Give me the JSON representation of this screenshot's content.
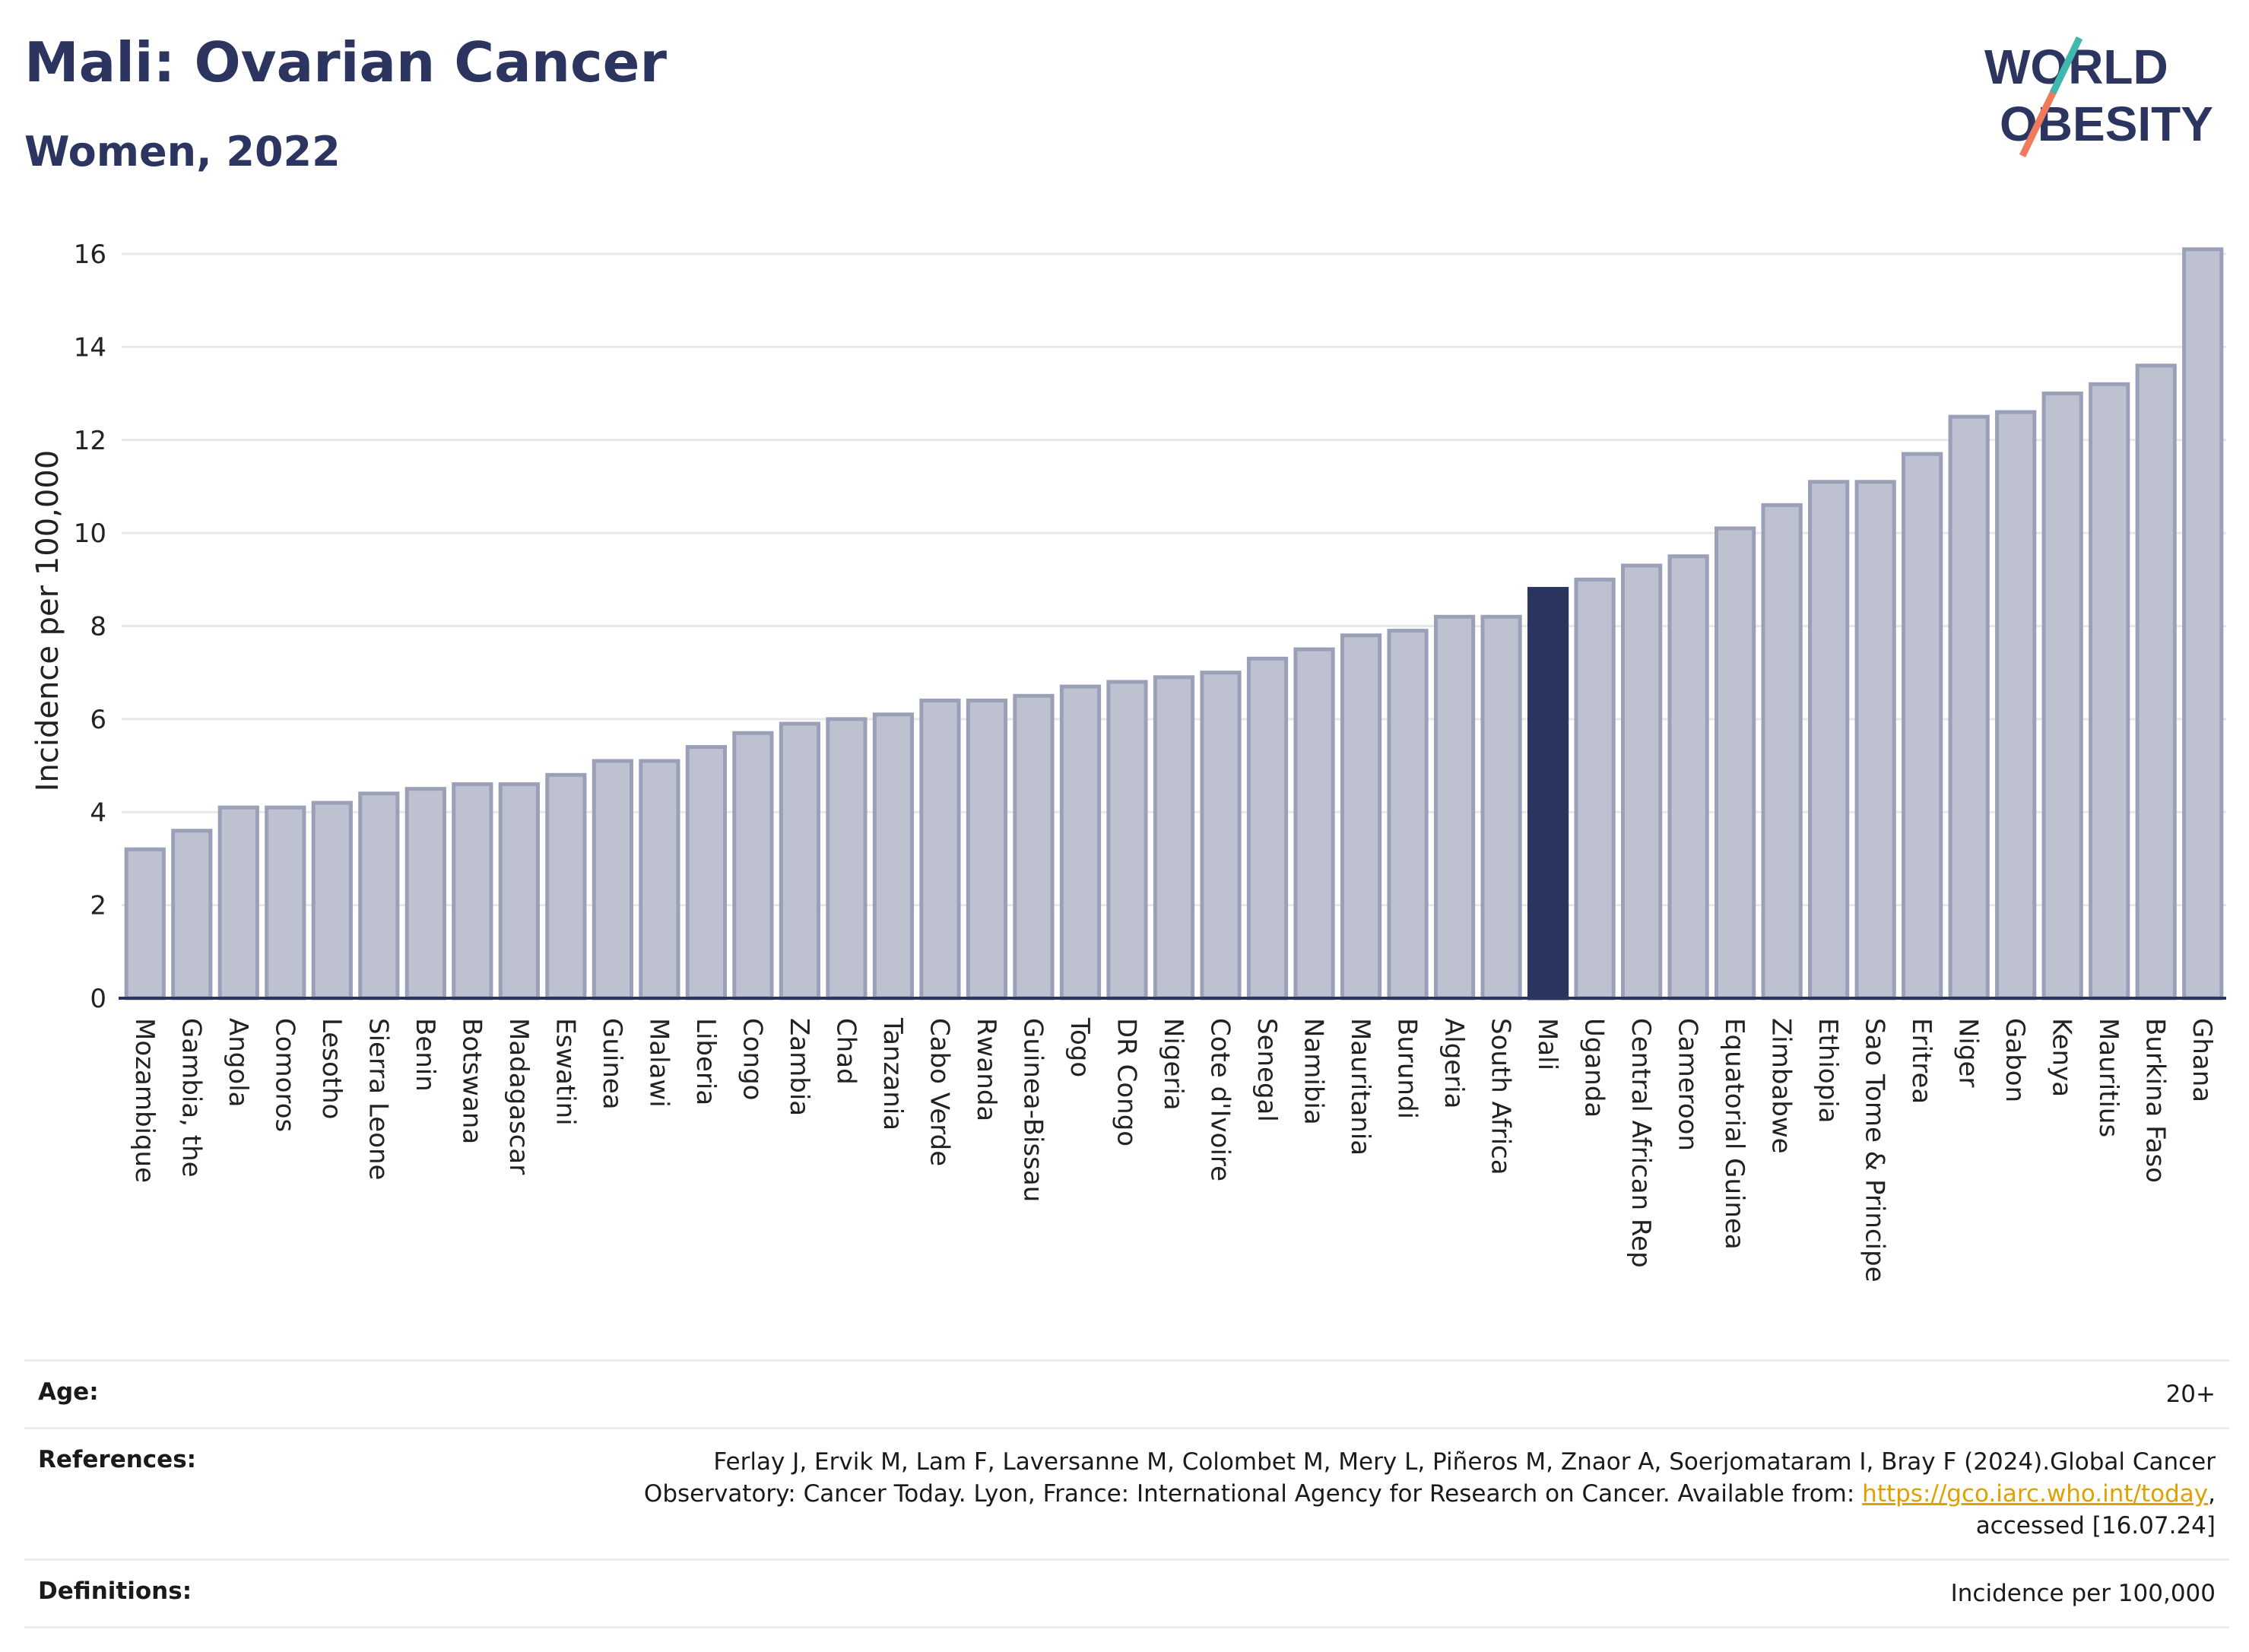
{
  "header": {
    "title": "Mali: Ovarian Cancer",
    "subtitle": "Women, 2022"
  },
  "logo": {
    "line1": "WORLD",
    "line2": "OBESITY"
  },
  "chart_data": {
    "type": "bar",
    "ylabel": "Incidence per 100,000",
    "ylim": [
      0,
      16
    ],
    "yticks": [
      "0",
      "2",
      "4",
      "6",
      "8",
      "10",
      "12",
      "14",
      "16"
    ],
    "grid": true,
    "highlight": "Mali",
    "colors": {
      "bar": "#bec2d0",
      "bar_edge": "#9aa0b8",
      "highlight": "#2b3560"
    },
    "categories": [
      "Mozambique",
      "Gambia, the",
      "Angola",
      "Comoros",
      "Lesotho",
      "Sierra Leone",
      "Benin",
      "Botswana",
      "Madagascar",
      "Eswatini",
      "Guinea",
      "Malawi",
      "Liberia",
      "Congo",
      "Zambia",
      "Chad",
      "Tanzania",
      "Cabo Verde",
      "Rwanda",
      "Guinea-Bissau",
      "Togo",
      "DR Congo",
      "Nigeria",
      "Cote d'Ivoire",
      "Senegal",
      "Namibia",
      "Mauritania",
      "Burundi",
      "Algeria",
      "South Africa",
      "Mali",
      "Uganda",
      "Central African Rep",
      "Cameroon",
      "Equatorial Guinea",
      "Zimbabwe",
      "Ethiopia",
      "Sao Tome & Principe",
      "Eritrea",
      "Niger",
      "Gabon",
      "Kenya",
      "Mauritius",
      "Burkina Faso",
      "Ghana"
    ],
    "values": [
      3.2,
      3.6,
      4.1,
      4.1,
      4.2,
      4.4,
      4.5,
      4.6,
      4.6,
      4.8,
      5.1,
      5.1,
      5.4,
      5.7,
      5.9,
      6.0,
      6.1,
      6.4,
      6.4,
      6.5,
      6.7,
      6.8,
      6.9,
      7.0,
      7.3,
      7.5,
      7.8,
      7.9,
      8.2,
      8.2,
      8.8,
      9.0,
      9.3,
      9.5,
      10.1,
      10.6,
      11.1,
      11.1,
      11.7,
      12.5,
      12.6,
      13.0,
      13.2,
      13.6,
      16.1
    ]
  },
  "info": {
    "age_label": "Age:",
    "age_value": "20+",
    "references_label": "References:",
    "references_text": "Ferlay J, Ervik M, Lam F, Laversanne M, Colombet M, Mery L, Piñeros M, Znaor A, Soerjomataram I, Bray F (2024).Global Cancer Observatory: Cancer Today. Lyon, France: International Agency for Research on Cancer. Available from:",
    "references_link": "https://gco.iarc.who.int/today",
    "references_tail": ", accessed [16.07.24]",
    "definitions_label": "Definitions:",
    "definitions_value": "Incidence per 100,000"
  }
}
